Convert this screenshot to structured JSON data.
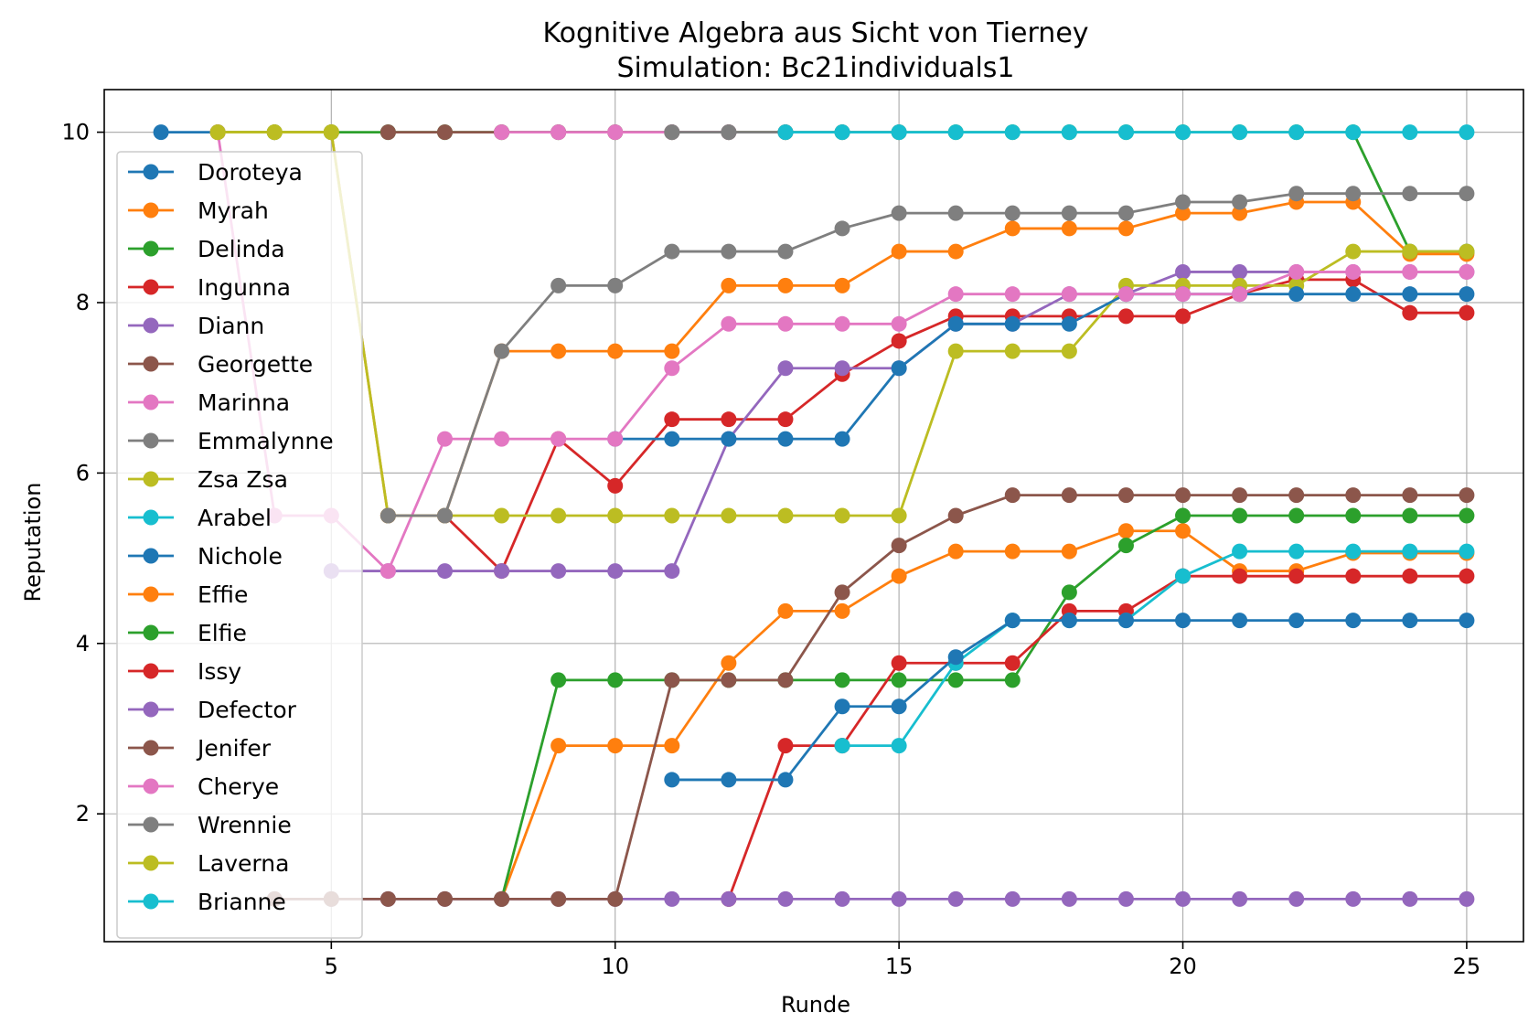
{
  "chart_data": {
    "type": "line",
    "title": "Kognitive Algebra aus Sicht von Tierney",
    "subtitle": "Simulation: Bc21individuals1",
    "xlabel": "Runde",
    "ylabel": "Reputation",
    "xlim": [
      1,
      26
    ],
    "ylim": [
      0.5,
      10.5
    ],
    "xticks": [
      5,
      10,
      15,
      20,
      25
    ],
    "yticks": [
      2,
      4,
      6,
      8,
      10
    ],
    "grid": true,
    "legend_position": "left",
    "series": [
      {
        "name": "Doroteya",
        "color": "#1f77b4",
        "x": [
          2,
          3,
          4,
          5
        ],
        "y": [
          10,
          10,
          10,
          10
        ]
      },
      {
        "name": "Myrah",
        "color": "#ff7f0e",
        "x": [
          3,
          4,
          5,
          6,
          7,
          8,
          9,
          10,
          11,
          12,
          13,
          14,
          15,
          16,
          17,
          18,
          19,
          20,
          21,
          22,
          23,
          24,
          25
        ],
        "y": [
          10,
          10,
          10,
          5.5,
          5.5,
          7.43,
          7.43,
          7.43,
          7.43,
          8.2,
          8.2,
          8.2,
          8.6,
          8.6,
          8.87,
          8.87,
          8.87,
          9.05,
          9.05,
          9.18,
          9.18,
          8.57,
          8.57
        ]
      },
      {
        "name": "Delinda",
        "color": "#2ca02c",
        "x": [
          3,
          4,
          5,
          6,
          7,
          8,
          9,
          10,
          11,
          12,
          13,
          14,
          15,
          16,
          17,
          18,
          19,
          20,
          21,
          22,
          23,
          24,
          25
        ],
        "y": [
          10,
          10,
          10,
          10,
          10,
          10,
          10,
          10,
          10,
          10,
          10,
          10,
          10,
          10,
          10,
          10,
          10,
          10,
          10,
          10,
          10,
          8.6,
          8.6
        ]
      },
      {
        "name": "Ingunna",
        "color": "#d62728",
        "x": [
          6,
          7,
          8,
          9,
          10,
          11,
          12,
          13,
          14,
          15,
          16,
          17,
          18,
          19,
          20,
          21,
          22,
          23,
          24,
          25
        ],
        "y": [
          5.5,
          5.5,
          4.85,
          6.4,
          5.85,
          6.63,
          6.63,
          6.63,
          7.16,
          7.55,
          7.84,
          7.84,
          7.84,
          7.84,
          7.84,
          8.1,
          8.27,
          8.27,
          7.88,
          7.88
        ]
      },
      {
        "name": "Diann",
        "color": "#9467bd",
        "x": [
          5,
          6,
          7,
          8,
          9,
          10,
          11,
          12,
          13,
          14,
          15,
          16,
          17,
          18,
          19,
          20,
          21,
          22,
          23,
          24,
          25
        ],
        "y": [
          4.85,
          4.85,
          4.85,
          4.85,
          4.85,
          4.85,
          4.85,
          6.4,
          7.23,
          7.23,
          7.23,
          7.75,
          7.75,
          8.1,
          8.1,
          8.36,
          8.36,
          8.36,
          8.36,
          8.36,
          8.36
        ]
      },
      {
        "name": "Georgette",
        "color": "#8c564b",
        "x": [
          6,
          7,
          8,
          9,
          10,
          11,
          12,
          13
        ],
        "y": [
          10,
          10,
          10,
          10,
          10,
          10,
          10,
          10
        ]
      },
      {
        "name": "Marinna",
        "color": "#e377c2",
        "x": [
          8,
          9,
          10,
          11,
          12
        ],
        "y": [
          10,
          10,
          10,
          10,
          10
        ]
      },
      {
        "name": "Emmalynne",
        "color": "#7f7f7f",
        "x": [
          11,
          12,
          13,
          14,
          15
        ],
        "y": [
          10,
          10,
          10,
          10,
          10
        ]
      },
      {
        "name": "Zsa Zsa",
        "color": "#bcbd22",
        "x": [
          3,
          4,
          5,
          6,
          7,
          8,
          9,
          10,
          11,
          12,
          13,
          14,
          15,
          16,
          17,
          18,
          19,
          20,
          21,
          22,
          23,
          24,
          25
        ],
        "y": [
          10,
          10,
          10,
          5.5,
          5.5,
          5.5,
          5.5,
          5.5,
          5.5,
          5.5,
          5.5,
          5.5,
          5.5,
          7.43,
          7.43,
          7.43,
          8.2,
          8.2,
          8.2,
          8.2,
          8.6,
          8.6,
          8.6
        ]
      },
      {
        "name": "Arabel",
        "color": "#17becf",
        "x": [
          13,
          14,
          15,
          16,
          17,
          18,
          19,
          20,
          21,
          22,
          23,
          24,
          25
        ],
        "y": [
          10,
          10,
          10,
          10,
          10,
          10,
          10,
          10,
          10,
          10,
          10,
          10,
          10
        ]
      },
      {
        "name": "Nichole",
        "color": "#1f77b4",
        "x": [
          10,
          11,
          12,
          13,
          14,
          15,
          16,
          17,
          18,
          19,
          20,
          21,
          22,
          23,
          24,
          25
        ],
        "y": [
          6.4,
          6.4,
          6.4,
          6.4,
          6.4,
          7.23,
          7.75,
          7.75,
          7.75,
          8.1,
          8.1,
          8.1,
          8.1,
          8.1,
          8.1,
          8.1
        ]
      },
      {
        "name": "Effie",
        "color": "#ff7f0e",
        "x": [
          8,
          9,
          10,
          11,
          12,
          13,
          14,
          15,
          16,
          17,
          18,
          19,
          20,
          21,
          22,
          23,
          24,
          25
        ],
        "y": [
          1,
          2.8,
          2.8,
          2.8,
          3.77,
          4.38,
          4.38,
          4.79,
          5.08,
          5.08,
          5.08,
          5.32,
          5.32,
          4.85,
          4.85,
          5.06,
          5.06,
          5.06
        ]
      },
      {
        "name": "Elfie",
        "color": "#2ca02c",
        "x": [
          8,
          9,
          10,
          11,
          12,
          13,
          14,
          15,
          16,
          17,
          18,
          19,
          20,
          21,
          22,
          23,
          24,
          25
        ],
        "y": [
          1,
          3.57,
          3.57,
          3.57,
          3.57,
          3.57,
          3.57,
          3.57,
          3.57,
          3.57,
          4.6,
          5.15,
          5.5,
          5.5,
          5.5,
          5.5,
          5.5,
          5.5
        ]
      },
      {
        "name": "Issy",
        "color": "#d62728",
        "x": [
          12,
          13,
          14,
          15,
          16,
          17,
          18,
          19,
          20,
          21,
          22,
          23,
          24,
          25
        ],
        "y": [
          1,
          2.8,
          2.8,
          3.77,
          3.77,
          3.77,
          4.38,
          4.38,
          4.79,
          4.79,
          4.79,
          4.79,
          4.79,
          4.79
        ]
      },
      {
        "name": "Defector",
        "color": "#9467bd",
        "x": [
          4,
          5,
          6,
          7,
          8,
          9,
          10,
          11,
          12,
          13,
          14,
          15,
          16,
          17,
          18,
          19,
          20,
          21,
          22,
          23,
          24,
          25
        ],
        "y": [
          1,
          1,
          1,
          1,
          1,
          1,
          1,
          1,
          1,
          1,
          1,
          1,
          1,
          1,
          1,
          1,
          1,
          1,
          1,
          1,
          1,
          1
        ]
      },
      {
        "name": "Jenifer",
        "color": "#8c564b",
        "x": [
          4,
          5,
          6,
          7,
          8,
          9,
          10,
          11,
          12,
          13,
          14,
          15,
          16,
          17,
          18,
          19,
          20,
          21,
          22,
          23,
          24,
          25
        ],
        "y": [
          1,
          1,
          1,
          1,
          1,
          1,
          1,
          3.57,
          3.57,
          3.57,
          4.6,
          5.15,
          5.5,
          5.74,
          5.74,
          5.74,
          5.74,
          5.74,
          5.74,
          5.74,
          5.74,
          5.74
        ]
      },
      {
        "name": "Cherye",
        "color": "#e377c2",
        "x": [
          3,
          4,
          5,
          6,
          7,
          8,
          9,
          10,
          11,
          12,
          13,
          14,
          15,
          16,
          17,
          18,
          19,
          20,
          21,
          22,
          23,
          24,
          25
        ],
        "y": [
          10,
          5.5,
          5.5,
          4.85,
          6.4,
          6.4,
          6.4,
          6.4,
          7.23,
          7.75,
          7.75,
          7.75,
          7.75,
          8.1,
          8.1,
          8.1,
          8.1,
          8.1,
          8.1,
          8.36,
          8.36,
          8.36,
          8.36
        ]
      },
      {
        "name": "Wrennie",
        "color": "#7f7f7f",
        "x": [
          6,
          7,
          8,
          9,
          10,
          11,
          12,
          13,
          14,
          15,
          16,
          17,
          18,
          19,
          20,
          21,
          22,
          23,
          24,
          25
        ],
        "y": [
          5.5,
          5.5,
          7.43,
          8.2,
          8.2,
          8.6,
          8.6,
          8.6,
          8.87,
          9.05,
          9.05,
          9.05,
          9.05,
          9.05,
          9.18,
          9.18,
          9.28,
          9.28,
          9.28,
          9.28
        ]
      },
      {
        "name": "Laverna",
        "color": "#bcbd22",
        "x": [
          3,
          4,
          5
        ],
        "y": [
          10,
          10,
          10
        ]
      },
      {
        "name": "Brianne",
        "color": "#17becf",
        "x": [
          14,
          15,
          16,
          17,
          18,
          19,
          20,
          21,
          22,
          23,
          24,
          25
        ],
        "y": [
          2.8,
          2.8,
          3.77,
          4.27,
          4.27,
          4.27,
          4.79,
          5.08,
          5.08,
          5.08,
          5.08,
          5.08
        ]
      },
      {
        "name": "",
        "color": "#1f77b4",
        "x": [
          11,
          12,
          13,
          14,
          15,
          16,
          17,
          18,
          19,
          20,
          21,
          22,
          23,
          24,
          25
        ],
        "y": [
          2.4,
          2.4,
          2.4,
          3.26,
          3.26,
          3.84,
          4.27,
          4.27,
          4.27,
          4.27,
          4.27,
          4.27,
          4.27,
          4.27,
          4.27
        ]
      }
    ]
  }
}
